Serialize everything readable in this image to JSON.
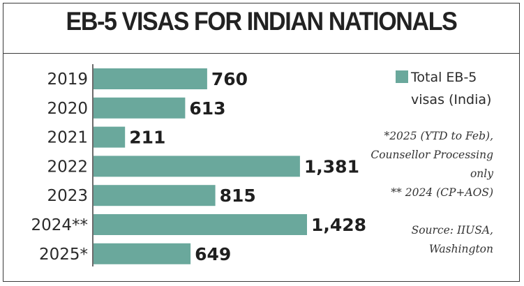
{
  "title": "EB-5 VISAS FOR INDIAN NATIONALS",
  "legend": {
    "label": "Total EB-5 visas (India)"
  },
  "footnotes": [
    "*2025 (YTD to Feb), Counsellor Processing only",
    "** 2024 (CP+AOS)"
  ],
  "source": "Source: IIUSA, Washington",
  "colors": {
    "bar": "#6aa89c",
    "axis": "#3a3a3a",
    "text": "#222222"
  },
  "chart_data": {
    "type": "bar",
    "orientation": "horizontal",
    "title": "EB-5 VISAS FOR INDIAN NATIONALS",
    "categories": [
      "2019",
      "2020",
      "2021",
      "2022",
      "2023",
      "2024**",
      "2025*"
    ],
    "series": [
      {
        "name": "Total EB-5 visas (India)",
        "values": [
          760,
          613,
          211,
          1381,
          815,
          1428,
          649
        ],
        "labels": [
          "760",
          "613",
          "211",
          "1,381",
          "815",
          "1,428",
          "649"
        ]
      }
    ],
    "xlim": [
      0,
      1428
    ],
    "grid": false,
    "legend_position": "top-right"
  }
}
